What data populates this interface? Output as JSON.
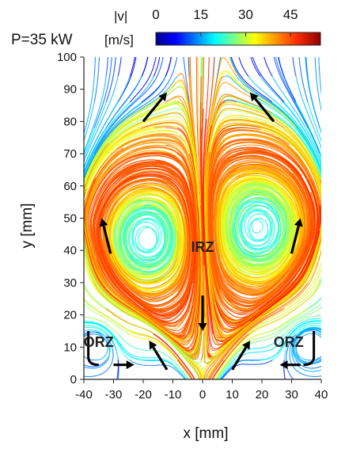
{
  "chart_data": {
    "type": "streamline",
    "title": "P=35 kW",
    "xlabel": "x [mm]",
    "ylabel": "y [mm]",
    "xlim": [
      -40,
      40
    ],
    "ylim": [
      0,
      100
    ],
    "xticks": [
      -40,
      -30,
      -20,
      -10,
      0,
      10,
      20,
      30,
      40
    ],
    "yticks": [
      0,
      10,
      20,
      30,
      40,
      50,
      60,
      70,
      80,
      90,
      100
    ],
    "colorbar": {
      "label_top": "|v|",
      "label_bottom": "[m/s]",
      "ticks": [
        0,
        15,
        30,
        45
      ],
      "range": [
        0,
        55
      ],
      "colormap": "jet"
    },
    "annotations": [
      {
        "text": "IRZ",
        "x": 0,
        "y": 41
      },
      {
        "text": "ORZ",
        "x": -35,
        "y": 11.5
      },
      {
        "text": "ORZ",
        "x": 29,
        "y": 11.5
      }
    ],
    "vortex_centers": [
      {
        "x": -19,
        "y": 44
      },
      {
        "x": 19,
        "y": 47
      }
    ],
    "flow_arrows": [
      {
        "x0": -20,
        "y0": 80,
        "x1": -12,
        "y1": 89
      },
      {
        "x0": 24,
        "y0": 80,
        "x1": 16,
        "y1": 89
      },
      {
        "x0": -31,
        "y0": 39,
        "x1": -34,
        "y1": 50
      },
      {
        "x0": 30,
        "y0": 39,
        "x1": 33,
        "y1": 50
      },
      {
        "x0": 0,
        "y0": 26,
        "x1": 0,
        "y1": 15
      },
      {
        "x0": -12,
        "y0": 3,
        "x1": -18,
        "y1": 12
      },
      {
        "x0": 10,
        "y0": 3,
        "x1": 16,
        "y1": 12
      },
      {
        "x0": -30,
        "y0": 4.5,
        "x1": -23,
        "y1": 4.5
      },
      {
        "x0": 33,
        "y0": 4.5,
        "x1": 26,
        "y1": 4.5
      }
    ]
  }
}
